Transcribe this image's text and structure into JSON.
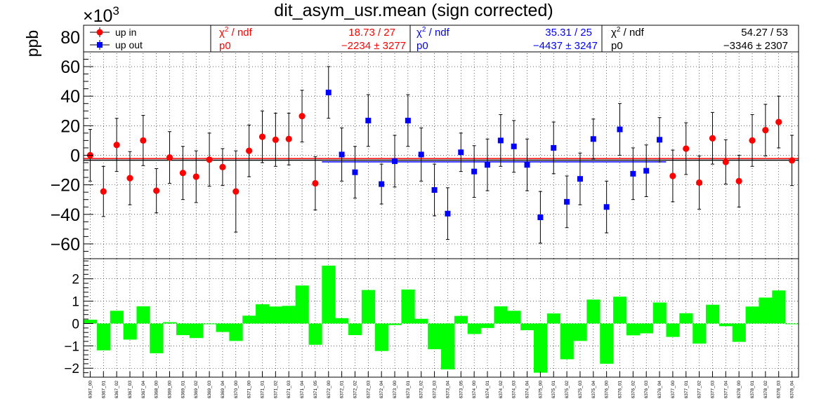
{
  "chart_data": [
    {
      "type": "scatter",
      "title": "dit_asym_usr.mean (sign corrected)",
      "ylabel": "ppb",
      "y_multiplier": "×10",
      "y_multiplier_exp": "3",
      "ylim": [
        -70,
        88
      ],
      "yticks": [
        -60,
        -40,
        -20,
        0,
        20,
        40,
        60,
        80
      ],
      "ytick_labels": [
        "−60",
        "−40",
        "−20",
        "0",
        "20",
        "40",
        "60",
        "80"
      ],
      "legend": {
        "placement": "top-left",
        "entries": [
          "up in",
          "up out"
        ]
      },
      "stats": [
        {
          "chi2_label": "χ",
          "chi2_sup": "2",
          "chi2_suffix": " / ndf",
          "chi2_value": "18.73 / 27",
          "p0_label": "p0",
          "p0_value": "−2234 ±  3277",
          "color": "#ff0000"
        },
        {
          "chi2_label": "χ",
          "chi2_sup": "2",
          "chi2_suffix": " / ndf",
          "chi2_value": "35.31 / 25",
          "p0_label": "p0",
          "p0_value": "−4437 ±  3247",
          "color": "#0000ff"
        },
        {
          "chi2_label": "χ",
          "chi2_sup": "2",
          "chi2_suffix": " / ndf",
          "chi2_value": "54.27 / 53",
          "p0_label": "p0",
          "p0_value": "−3346 ±  2307",
          "color": "#000000"
        }
      ],
      "categories": [
        "6367_00",
        "6367_01",
        "6367_02",
        "6367_03",
        "6367_04",
        "6368_00",
        "6369_00",
        "6369_01",
        "6369_02",
        "6369_03",
        "6369_04",
        "6370_00",
        "6371_00",
        "6371_01",
        "6371_02",
        "6371_03",
        "6371_04",
        "6371_05",
        "6372_00",
        "6372_01",
        "6372_02",
        "6372_03",
        "6372_04",
        "6373_00",
        "6373_01",
        "6373_02",
        "6373_03",
        "6373_04",
        "6373_05",
        "6374_00",
        "6374_01",
        "6374_02",
        "6374_03",
        "6374_04",
        "6375_00",
        "6375_01",
        "6375_02",
        "6375_03",
        "6375_04",
        "6376_00",
        "6376_01",
        "6376_02",
        "6376_03",
        "6376_04",
        "6377_00",
        "6377_01",
        "6377_02",
        "6377_03",
        "6377_04",
        "6378_00",
        "6378_01",
        "6378_02",
        "6378_03",
        "6378_04"
      ],
      "series": [
        {
          "name": "up in",
          "color": "#ff0000",
          "marker": "circle",
          "indices": [
            0,
            1,
            2,
            3,
            4,
            5,
            6,
            7,
            8,
            9,
            10,
            11,
            12,
            13,
            14,
            15,
            16,
            17,
            44,
            45,
            46,
            47,
            48,
            49,
            50,
            51,
            52,
            53
          ],
          "values": [
            0,
            -24.5,
            7,
            -15.5,
            10,
            -24,
            -1.5,
            -12,
            -14.5,
            -3,
            -8,
            -24.5,
            3,
            12.5,
            10.5,
            11,
            26.5,
            -19,
            -14,
            4.5,
            -18.5,
            11.5,
            -4.5,
            -17.5,
            10,
            17,
            22.5,
            -3.5
          ],
          "errors": [
            17.5,
            17,
            18,
            18,
            17,
            15,
            17.5,
            18,
            17.5,
            18,
            12.5,
            27.5,
            17.5,
            17.5,
            18,
            17.5,
            17.5,
            18,
            17.5,
            17.5,
            18,
            17.5,
            15,
            17.5,
            17.5,
            17.5,
            17.5,
            17
          ]
        },
        {
          "name": "up out",
          "color": "#0000ff",
          "marker": "square",
          "indices": [
            18,
            19,
            20,
            21,
            22,
            23,
            24,
            25,
            26,
            27,
            28,
            29,
            30,
            31,
            32,
            33,
            34,
            35,
            36,
            37,
            38,
            39,
            40,
            41,
            42,
            43
          ],
          "values": [
            42.5,
            0.5,
            -11.5,
            23.5,
            -19.5,
            -4,
            23.5,
            0.5,
            -23.5,
            -39.5,
            2,
            -11,
            -6.5,
            10,
            6,
            -6.5,
            -42,
            5,
            -31.5,
            -16,
            11,
            -35,
            17.5,
            -12.5,
            -10.5,
            10.5
          ],
          "errors": [
            17.5,
            18,
            17.5,
            17.5,
            13.5,
            17.5,
            17.5,
            18,
            17.5,
            17.5,
            13,
            17.5,
            17.5,
            17.5,
            17.5,
            17.5,
            17.5,
            17.5,
            17.5,
            17.5,
            13.5,
            17.5,
            17.5,
            17.5,
            17.5,
            15
          ]
        }
      ],
      "fits": [
        {
          "label": "up in fit",
          "value": -2.234,
          "color": "#ff0000",
          "index_range": [
            0,
            53
          ]
        },
        {
          "label": "up out fit",
          "value": -4.437,
          "color": "#0000ff",
          "index_range": [
            18,
            43
          ]
        },
        {
          "label": "combined fit",
          "value": -3.346,
          "color": "#000000",
          "index_range": [
            0,
            53
          ]
        }
      ],
      "grid": true
    },
    {
      "type": "bar",
      "ylim": [
        -2.4,
        2.9
      ],
      "yticks": [
        -2,
        -1,
        0,
        1,
        2
      ],
      "ytick_labels": [
        "−2",
        "−1",
        "0",
        "1",
        "2"
      ],
      "color": "#00ff00",
      "values": [
        0.17,
        -1.2,
        0.57,
        -0.72,
        0.77,
        -1.33,
        0.06,
        -0.52,
        -0.65,
        -0.02,
        -0.38,
        -0.78,
        0.35,
        0.86,
        0.76,
        0.79,
        1.7,
        -0.95,
        2.59,
        0.24,
        -0.52,
        1.5,
        -1.23,
        -0.07,
        1.52,
        0.21,
        -1.15,
        -2.05,
        0.34,
        -0.47,
        -0.2,
        0.77,
        0.57,
        -0.3,
        -2.2,
        0.45,
        -1.6,
        -0.78,
        1.07,
        -1.8,
        1.2,
        -0.53,
        -0.44,
        0.94,
        -0.6,
        0.46,
        -0.9,
        0.84,
        -0.12,
        -0.82,
        0.76,
        1.16,
        1.48,
        -0.03
      ],
      "grid": true
    }
  ]
}
